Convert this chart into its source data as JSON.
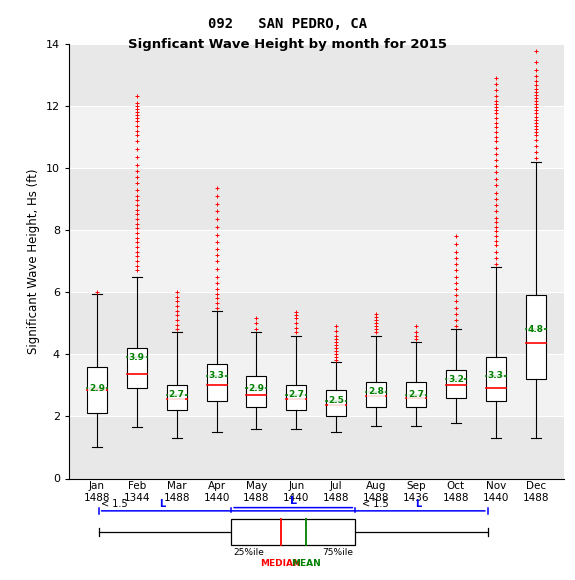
{
  "title_line1": "092   SAN PEDRO, CA",
  "title_line2": "Signficant Wave Height by month for 2015",
  "ylabel": "Significant Wave Height, Hs (ft)",
  "months": [
    "Jan",
    "Feb",
    "Mar",
    "Apr",
    "May",
    "Jun",
    "Jul",
    "Aug",
    "Sep",
    "Oct",
    "Nov",
    "Dec"
  ],
  "counts": [
    1488,
    1344,
    1488,
    1440,
    1488,
    1440,
    1488,
    1488,
    1436,
    1488,
    1440,
    1488
  ],
  "ylim": [
    0,
    14
  ],
  "yticks": [
    0,
    2,
    4,
    6,
    8,
    10,
    12,
    14
  ],
  "box_stats": {
    "Jan": {
      "q1": 2.1,
      "median": 2.85,
      "mean": 2.9,
      "q3": 3.6,
      "whislo": 1.0,
      "whishi": 5.95
    },
    "Feb": {
      "q1": 2.9,
      "median": 3.35,
      "mean": 3.9,
      "q3": 4.2,
      "whislo": 1.65,
      "whishi": 6.5
    },
    "Mar": {
      "q1": 2.2,
      "median": 2.55,
      "mean": 2.7,
      "q3": 3.0,
      "whislo": 1.3,
      "whishi": 4.7
    },
    "Apr": {
      "q1": 2.5,
      "median": 3.0,
      "mean": 3.3,
      "q3": 3.7,
      "whislo": 1.5,
      "whishi": 5.4
    },
    "May": {
      "q1": 2.3,
      "median": 2.7,
      "mean": 2.9,
      "q3": 3.3,
      "whislo": 1.6,
      "whishi": 4.7
    },
    "Jun": {
      "q1": 2.2,
      "median": 2.55,
      "mean": 2.7,
      "q3": 3.0,
      "whislo": 1.6,
      "whishi": 4.6
    },
    "Jul": {
      "q1": 2.0,
      "median": 2.35,
      "mean": 2.5,
      "q3": 2.85,
      "whislo": 1.5,
      "whishi": 3.75
    },
    "Aug": {
      "q1": 2.3,
      "median": 2.65,
      "mean": 2.8,
      "q3": 3.1,
      "whislo": 1.7,
      "whishi": 4.6
    },
    "Sep": {
      "q1": 2.3,
      "median": 2.6,
      "mean": 2.7,
      "q3": 3.1,
      "whislo": 1.7,
      "whishi": 4.4
    },
    "Oct": {
      "q1": 2.6,
      "median": 3.0,
      "mean": 3.2,
      "q3": 3.5,
      "whislo": 1.8,
      "whishi": 4.8
    },
    "Nov": {
      "q1": 2.5,
      "median": 2.9,
      "mean": 3.3,
      "q3": 3.9,
      "whislo": 1.3,
      "whishi": 6.8
    },
    "Dec": {
      "q1": 3.2,
      "median": 4.35,
      "mean": 4.8,
      "q3": 5.9,
      "whislo": 1.3,
      "whishi": 10.2
    }
  },
  "outlier_data": {
    "Jan": [
      6.0
    ],
    "Feb": [
      6.7,
      6.85,
      7.0,
      7.15,
      7.3,
      7.45,
      7.6,
      7.75,
      7.9,
      8.05,
      8.2,
      8.35,
      8.5,
      8.65,
      8.8,
      8.95,
      9.1,
      9.3,
      9.5,
      9.7,
      9.9,
      10.1,
      10.35,
      10.6,
      10.85,
      11.05,
      11.2,
      11.35,
      11.5,
      11.6,
      11.7,
      11.8,
      11.9,
      12.0,
      12.1,
      12.3
    ],
    "Mar": [
      4.8,
      4.95,
      5.1,
      5.25,
      5.4,
      5.55,
      5.7,
      5.85,
      6.0
    ],
    "Apr": [
      5.5,
      5.65,
      5.8,
      5.95,
      6.1,
      6.3,
      6.5,
      6.75,
      7.0,
      7.2,
      7.4,
      7.6,
      7.85,
      8.1,
      8.35,
      8.6,
      8.85,
      9.1,
      9.35
    ],
    "May": [
      4.8,
      5.0,
      5.15
    ],
    "Jun": [
      4.7,
      4.85,
      5.0,
      5.15,
      5.25,
      5.35
    ],
    "Jul": [
      3.8,
      3.9,
      4.0,
      4.1,
      4.2,
      4.3,
      4.4,
      4.5,
      4.6,
      4.75,
      4.9
    ],
    "Aug": [
      4.7,
      4.8,
      4.9,
      5.0,
      5.1,
      5.2,
      5.3
    ],
    "Sep": [
      4.5,
      4.6,
      4.7,
      4.9
    ],
    "Oct": [
      4.9,
      5.1,
      5.3,
      5.5,
      5.7,
      5.9,
      6.1,
      6.3,
      6.5,
      6.7,
      6.9,
      7.1,
      7.3,
      7.55,
      7.8
    ],
    "Nov": [
      6.9,
      7.1,
      7.3,
      7.5,
      7.65,
      7.8,
      7.95,
      8.1,
      8.25,
      8.4,
      8.6,
      8.8,
      9.0,
      9.2,
      9.45,
      9.65,
      9.85,
      10.05,
      10.25,
      10.45,
      10.65,
      10.85,
      11.0,
      11.15,
      11.3,
      11.45,
      11.6,
      11.75,
      11.85,
      11.95,
      12.05,
      12.15,
      12.3,
      12.5,
      12.7,
      12.9
    ],
    "Dec": [
      10.3,
      10.5,
      10.7,
      10.9,
      11.05,
      11.15,
      11.25,
      11.35,
      11.45,
      11.55,
      11.65,
      11.75,
      11.85,
      11.95,
      12.05,
      12.15,
      12.25,
      12.35,
      12.45,
      12.55,
      12.65,
      12.8,
      12.95,
      13.15,
      13.4,
      13.75
    ]
  },
  "mean_labels": {
    "Jan": "2.9",
    "Feb": "3.9",
    "Mar": "2.7",
    "Apr": "3.3",
    "May": "2.9",
    "Jun": "2.7",
    "Jul": "2.5",
    "Aug": "2.8",
    "Sep": "2.7",
    "Oct": "3.2",
    "Nov": "3.3",
    "Dec": "4.8"
  },
  "band_colors": [
    "#e8e8e8",
    "#f2f2f2"
  ],
  "box_width": 0.5
}
